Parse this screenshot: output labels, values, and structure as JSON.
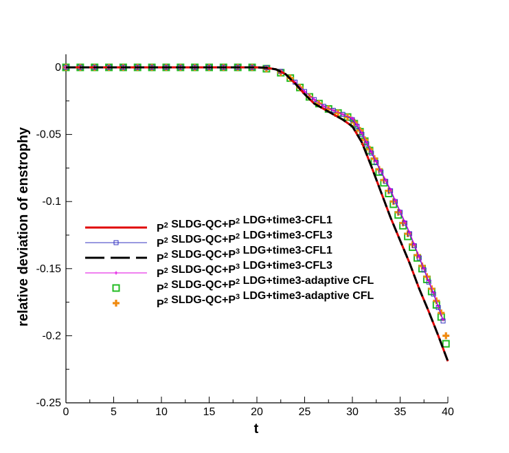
{
  "chart_data": {
    "type": "line",
    "title": "",
    "xlabel": "t",
    "ylabel": "relative deviation of enstrophy",
    "xlim": [
      0,
      40
    ],
    "ylim": [
      -0.25,
      0
    ],
    "x_ticks": [
      0,
      5,
      10,
      15,
      20,
      25,
      30,
      35,
      40
    ],
    "y_ticks": [
      0,
      -0.05,
      -0.1,
      -0.15,
      -0.2,
      -0.25
    ],
    "x_tick_labels": [
      "0",
      "5",
      "10",
      "15",
      "20",
      "25",
      "30",
      "35",
      "40"
    ],
    "y_tick_labels": [
      "0",
      "-0.05",
      "-0.1",
      "-0.15",
      "-0.2",
      "-0.25"
    ],
    "grid": false,
    "legend_position": "center-right",
    "series": [
      {
        "name": "P2 SLDG-QC+P2 LDG+time3-CFL1",
        "legend": {
          "a": "P",
          "sa": "2",
          "b": " SLDG-QC+P",
          "sb": "2",
          "c": " LDG+time3-CFL1"
        },
        "color": "#e00000",
        "style": "solid",
        "marker": "none",
        "x": [
          0,
          5,
          10,
          15,
          20,
          21,
          22,
          23,
          24,
          25,
          26,
          27,
          28,
          29,
          30,
          31,
          32,
          33,
          34,
          35,
          36,
          37,
          38,
          39,
          40
        ],
        "y": [
          0,
          0,
          0,
          0,
          0,
          -0.0003,
          -0.0015,
          -0.005,
          -0.012,
          -0.02,
          -0.027,
          -0.031,
          -0.035,
          -0.039,
          -0.044,
          -0.056,
          -0.074,
          -0.093,
          -0.112,
          -0.129,
          -0.146,
          -0.165,
          -0.182,
          -0.2,
          -0.219
        ]
      },
      {
        "name": "P2 SLDG-QC+P2 LDG+time3-CFL3",
        "legend": {
          "a": "P",
          "sa": "2",
          "b": " SLDG-QC+P",
          "sb": "2",
          "c": " LDG+time3-CFL3"
        },
        "color": "#3030c0",
        "style": "solid",
        "marker": "open-square-small",
        "x": [
          0,
          1.5,
          3,
          4.5,
          6,
          7.5,
          9,
          10.5,
          12,
          13.5,
          15,
          16.5,
          18,
          19.5,
          21,
          22.5,
          24,
          25,
          26,
          27,
          28,
          29,
          30,
          30.5,
          31,
          31.5,
          32,
          32.5,
          33,
          33.5,
          34,
          34.5,
          35,
          35.5,
          36,
          36.5,
          37,
          37.5,
          38,
          38.5,
          39,
          39.5
        ],
        "y": [
          0,
          0,
          0,
          0,
          0,
          0,
          0,
          0,
          0,
          0,
          0,
          0,
          0,
          0,
          -0.0003,
          -0.003,
          -0.011,
          -0.018,
          -0.024,
          -0.029,
          -0.032,
          -0.035,
          -0.039,
          -0.044,
          -0.05,
          -0.057,
          -0.064,
          -0.071,
          -0.078,
          -0.085,
          -0.092,
          -0.1,
          -0.108,
          -0.116,
          -0.124,
          -0.133,
          -0.142,
          -0.151,
          -0.16,
          -0.169,
          -0.179,
          -0.189
        ]
      },
      {
        "name": "P2 SLDG-QC+P3 LDG+time3-CFL1",
        "legend": {
          "a": "P",
          "sa": "2",
          "b": " SLDG-QC+P",
          "sb": "3",
          "c": " LDG+time3-CFL1"
        },
        "color": "#000000",
        "style": "dashed",
        "marker": "none",
        "x": [
          0,
          5,
          10,
          15,
          20,
          21,
          22,
          23,
          24,
          25,
          26,
          27,
          28,
          29,
          30,
          31,
          32,
          33,
          34,
          35,
          36,
          37,
          38,
          39,
          40
        ],
        "y": [
          0,
          0,
          0,
          0,
          0,
          -0.0003,
          -0.0015,
          -0.005,
          -0.012,
          -0.02,
          -0.027,
          -0.031,
          -0.035,
          -0.039,
          -0.044,
          -0.056,
          -0.074,
          -0.093,
          -0.112,
          -0.129,
          -0.146,
          -0.165,
          -0.182,
          -0.2,
          -0.219
        ]
      },
      {
        "name": "P2 SLDG-QC+P3 LDG+time3-CFL3",
        "legend": {
          "a": "P",
          "sa": "2",
          "b": " SLDG-QC+P",
          "sb": "3",
          "c": " LDG+time3-CFL3"
        },
        "color": "#e000e0",
        "style": "solid",
        "marker": "plus-small",
        "x": [
          0,
          1.5,
          3,
          4.5,
          6,
          7.5,
          9,
          10.5,
          12,
          13.5,
          15,
          16.5,
          18,
          19.5,
          21,
          22.5,
          24,
          25,
          26,
          27,
          28,
          29,
          30,
          30.5,
          31,
          31.5,
          32,
          32.5,
          33,
          33.5,
          34,
          34.5,
          35,
          35.5,
          36,
          36.5,
          37,
          37.5,
          38,
          38.5,
          39,
          39.5
        ],
        "y": [
          0,
          0,
          0,
          0,
          0,
          0,
          0,
          0,
          0,
          0,
          0,
          0,
          0,
          0,
          -0.0003,
          -0.003,
          -0.011,
          -0.018,
          -0.024,
          -0.029,
          -0.032,
          -0.035,
          -0.038,
          -0.043,
          -0.049,
          -0.056,
          -0.063,
          -0.07,
          -0.077,
          -0.084,
          -0.091,
          -0.099,
          -0.107,
          -0.115,
          -0.123,
          -0.132,
          -0.141,
          -0.15,
          -0.159,
          -0.168,
          -0.178,
          -0.188
        ]
      },
      {
        "name": "P2 SLDG-QC+P2 LDG+time3-adaptive CFL",
        "legend": {
          "a": "P",
          "sa": "2",
          "b": " SLDG-QC+P",
          "sb": "2",
          "c": " LDG+time3-adaptive CFL"
        },
        "color": "#22bb22",
        "style": "none",
        "marker": "open-square",
        "x": [
          0,
          1.5,
          3,
          4.5,
          6,
          7.5,
          9,
          10.5,
          12,
          13.5,
          15,
          16.5,
          18,
          19.5,
          21,
          22.5,
          23.5,
          24.5,
          25.5,
          26.5,
          27.5,
          28.5,
          29.5,
          30.2,
          30.8,
          31.3,
          31.8,
          32.3,
          32.8,
          33.3,
          33.8,
          34.3,
          34.8,
          35.3,
          35.8,
          36.3,
          36.8,
          37.3,
          37.8,
          38.3,
          38.8,
          39.3,
          39.8
        ],
        "y": [
          0,
          0,
          0,
          0,
          0,
          0,
          0,
          0,
          0,
          0,
          0,
          0,
          0,
          0,
          -0.001,
          -0.004,
          -0.008,
          -0.015,
          -0.022,
          -0.027,
          -0.031,
          -0.034,
          -0.037,
          -0.042,
          -0.048,
          -0.055,
          -0.062,
          -0.07,
          -0.078,
          -0.086,
          -0.094,
          -0.102,
          -0.11,
          -0.118,
          -0.126,
          -0.134,
          -0.142,
          -0.15,
          -0.158,
          -0.167,
          -0.177,
          -0.186,
          -0.206
        ]
      },
      {
        "name": "P2 SLDG-QC+P3 LDG+time3-adaptive CFL",
        "legend": {
          "a": "P",
          "sa": "2",
          "b": " SLDG-QC+P",
          "sb": "3",
          "c": " LDG+time3-adaptive CFL"
        },
        "color": "#f08a10",
        "style": "none",
        "marker": "plus",
        "x": [
          0,
          1.5,
          3,
          4.5,
          6,
          7.5,
          9,
          10.5,
          12,
          13.5,
          15,
          16.5,
          18,
          19.5,
          21,
          22.5,
          23.5,
          24.5,
          25.5,
          26.5,
          27.5,
          28.5,
          29.5,
          30.2,
          30.8,
          31.3,
          31.8,
          32.3,
          32.8,
          33.3,
          33.8,
          34.3,
          34.8,
          35.3,
          35.8,
          36.3,
          36.8,
          37.3,
          37.8,
          38.3,
          38.8,
          39.3,
          39.8
        ],
        "y": [
          0,
          0,
          0,
          0,
          0,
          0,
          0,
          0,
          0,
          0,
          0,
          0,
          0,
          0,
          -0.001,
          -0.004,
          -0.008,
          -0.015,
          -0.022,
          -0.027,
          -0.031,
          -0.034,
          -0.037,
          -0.041,
          -0.047,
          -0.054,
          -0.061,
          -0.068,
          -0.076,
          -0.084,
          -0.092,
          -0.1,
          -0.108,
          -0.116,
          -0.124,
          -0.132,
          -0.14,
          -0.148,
          -0.156,
          -0.165,
          -0.174,
          -0.183,
          -0.2
        ]
      }
    ]
  }
}
